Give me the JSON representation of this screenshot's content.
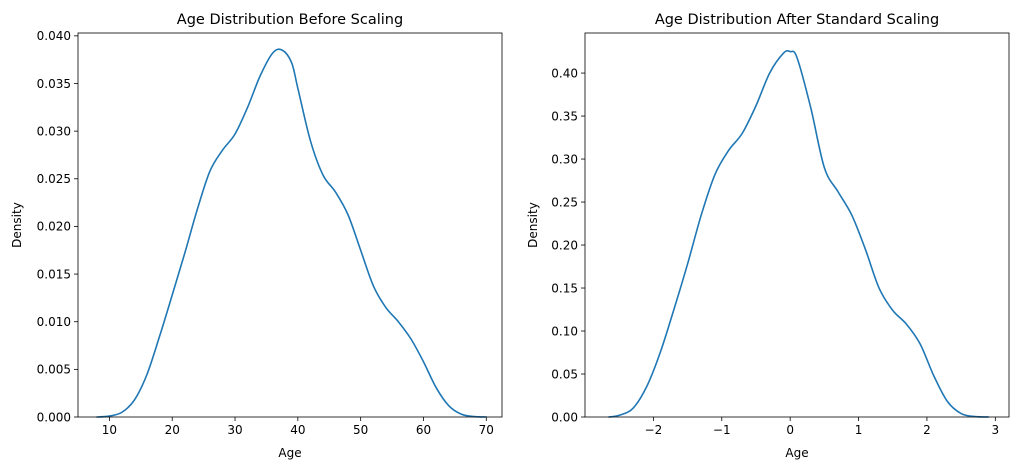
{
  "colors": {
    "line": "#1f77b4",
    "axes": "#000000",
    "background": "#ffffff"
  },
  "chart_data": [
    {
      "type": "line",
      "title": "Age Distribution Before Scaling",
      "xlabel": "Age",
      "ylabel": "Density",
      "xlim": [
        5,
        72.5
      ],
      "ylim": [
        0,
        0.0403
      ],
      "xticks": [
        10,
        20,
        30,
        40,
        50,
        60,
        70
      ],
      "xticklabels": [
        "10",
        "20",
        "30",
        "40",
        "50",
        "60",
        "70"
      ],
      "yticks": [
        0,
        0.005,
        0.01,
        0.015,
        0.02,
        0.025,
        0.03,
        0.035,
        0.04
      ],
      "yticklabels": [
        "0.000",
        "0.005",
        "0.010",
        "0.015",
        "0.020",
        "0.025",
        "0.030",
        "0.035",
        "0.040"
      ],
      "grid": false,
      "series": [
        {
          "x": [
            8,
            10,
            12,
            14,
            16,
            18,
            20,
            22,
            24,
            26,
            28,
            30,
            32,
            34,
            36,
            37.5,
            39,
            40,
            42,
            44,
            46,
            48,
            50,
            52,
            54,
            56,
            58,
            60,
            62,
            64,
            66,
            68,
            70
          ],
          "y": [
            0.0,
            0.0001,
            0.0005,
            0.0018,
            0.0045,
            0.0085,
            0.0128,
            0.0172,
            0.0218,
            0.0258,
            0.028,
            0.0297,
            0.0325,
            0.0358,
            0.0382,
            0.0385,
            0.0372,
            0.0345,
            0.029,
            0.0254,
            0.0236,
            0.0212,
            0.0175,
            0.0138,
            0.0115,
            0.01,
            0.0082,
            0.0058,
            0.0031,
            0.0012,
            0.0003,
            5e-05,
            0.0
          ]
        }
      ]
    },
    {
      "type": "line",
      "title": "Age Distribution After Standard Scaling",
      "xlabel": "Age",
      "ylabel": "Density",
      "xlim": [
        -3.0,
        3.2
      ],
      "ylim": [
        0,
        0.4466
      ],
      "xticks": [
        -2,
        -1,
        0,
        1,
        2,
        3
      ],
      "xticklabels": [
        "−2",
        "−1",
        "0",
        "1",
        "2",
        "3"
      ],
      "yticks": [
        0,
        0.05,
        0.1,
        0.15,
        0.2,
        0.25,
        0.3,
        0.35,
        0.4
      ],
      "yticklabels": [
        "0.00",
        "0.05",
        "0.10",
        "0.15",
        "0.20",
        "0.25",
        "0.30",
        "0.35",
        "0.40"
      ],
      "grid": false,
      "series": [
        {
          "x": [
            -2.65,
            -2.5,
            -2.3,
            -2.1,
            -1.9,
            -1.7,
            -1.5,
            -1.3,
            -1.1,
            -0.9,
            -0.7,
            -0.5,
            -0.3,
            -0.1,
            0.0,
            0.1,
            0.3,
            0.5,
            0.7,
            0.9,
            1.1,
            1.3,
            1.5,
            1.7,
            1.9,
            2.1,
            2.3,
            2.5,
            2.7,
            2.9
          ],
          "y": [
            0.0,
            0.002,
            0.01,
            0.035,
            0.075,
            0.125,
            0.178,
            0.235,
            0.282,
            0.31,
            0.33,
            0.362,
            0.4,
            0.423,
            0.425,
            0.418,
            0.36,
            0.29,
            0.262,
            0.235,
            0.195,
            0.15,
            0.124,
            0.108,
            0.085,
            0.048,
            0.018,
            0.004,
            0.0005,
            0.0
          ]
        }
      ]
    }
  ]
}
